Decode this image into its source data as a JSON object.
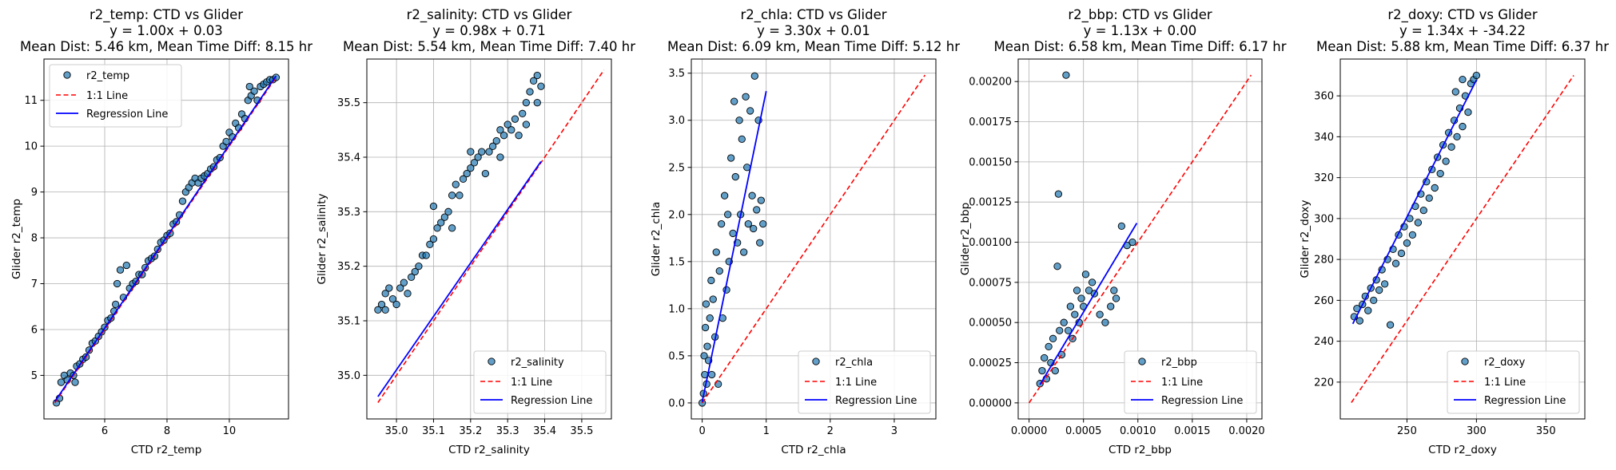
{
  "chart_data": [
    {
      "type": "scatter",
      "variable": "r2_temp",
      "title_lines": [
        "r2_temp: CTD vs Glider",
        "y = 1.00x + 0.03",
        "Mean Dist: 5.46 km, Mean Time Diff: 8.15 hr"
      ],
      "xlabel": "CTD r2_temp",
      "ylabel": "Glider r2_temp",
      "xlim": [
        4.05,
        11.9
      ],
      "ylim": [
        4.05,
        11.9
      ],
      "xticks": [
        6,
        8,
        10
      ],
      "yticks": [
        5,
        6,
        7,
        8,
        9,
        10,
        11
      ],
      "tick_decimals": 0,
      "legend_position": "upper-left",
      "legend_entries": [
        "r2_temp",
        "1:1 Line",
        "Regression Line"
      ],
      "identity_line": [
        4.4,
        11.5
      ],
      "regression": {
        "slope": 1.0,
        "intercept": 0.03,
        "x_range": [
          4.4,
          11.5
        ]
      },
      "colors": {
        "points": "#1f77b4",
        "identity": "#ff0000",
        "regression": "#0000ff"
      },
      "points": [
        [
          4.45,
          4.4
        ],
        [
          4.55,
          4.5
        ],
        [
          4.6,
          4.85
        ],
        [
          4.7,
          5.0
        ],
        [
          4.8,
          4.9
        ],
        [
          4.9,
          5.05
        ],
        [
          5.0,
          5.0
        ],
        [
          5.05,
          4.85
        ],
        [
          5.1,
          5.2
        ],
        [
          5.2,
          5.25
        ],
        [
          5.3,
          5.35
        ],
        [
          5.4,
          5.4
        ],
        [
          5.5,
          5.55
        ],
        [
          5.6,
          5.7
        ],
        [
          5.7,
          5.75
        ],
        [
          5.8,
          5.85
        ],
        [
          5.9,
          5.95
        ],
        [
          6.0,
          6.05
        ],
        [
          6.1,
          6.2
        ],
        [
          6.2,
          6.25
        ],
        [
          6.3,
          6.4
        ],
        [
          6.35,
          6.55
        ],
        [
          6.4,
          7.0
        ],
        [
          6.5,
          7.3
        ],
        [
          6.6,
          6.7
        ],
        [
          6.7,
          7.4
        ],
        [
          6.8,
          6.9
        ],
        [
          6.9,
          7.0
        ],
        [
          7.0,
          7.05
        ],
        [
          7.1,
          7.2
        ],
        [
          7.2,
          7.2
        ],
        [
          7.3,
          7.35
        ],
        [
          7.4,
          7.5
        ],
        [
          7.5,
          7.55
        ],
        [
          7.6,
          7.6
        ],
        [
          7.7,
          7.75
        ],
        [
          7.8,
          7.9
        ],
        [
          7.9,
          7.95
        ],
        [
          8.0,
          8.05
        ],
        [
          8.1,
          8.1
        ],
        [
          8.2,
          8.3
        ],
        [
          8.3,
          8.35
        ],
        [
          8.4,
          8.5
        ],
        [
          8.5,
          8.8
        ],
        [
          8.6,
          9.0
        ],
        [
          8.7,
          9.1
        ],
        [
          8.8,
          9.2
        ],
        [
          8.9,
          9.3
        ],
        [
          9.0,
          9.2
        ],
        [
          9.1,
          9.3
        ],
        [
          9.2,
          9.35
        ],
        [
          9.3,
          9.4
        ],
        [
          9.4,
          9.5
        ],
        [
          9.5,
          9.55
        ],
        [
          9.6,
          9.7
        ],
        [
          9.7,
          9.75
        ],
        [
          9.8,
          10.0
        ],
        [
          9.9,
          10.1
        ],
        [
          10.0,
          10.3
        ],
        [
          10.1,
          10.2
        ],
        [
          10.2,
          10.5
        ],
        [
          10.3,
          10.4
        ],
        [
          10.4,
          10.7
        ],
        [
          10.5,
          10.6
        ],
        [
          10.6,
          11.0
        ],
        [
          10.65,
          11.3
        ],
        [
          10.7,
          11.1
        ],
        [
          10.8,
          11.2
        ],
        [
          10.9,
          11.0
        ],
        [
          11.0,
          11.3
        ],
        [
          11.1,
          11.35
        ],
        [
          11.2,
          11.4
        ],
        [
          11.3,
          11.45
        ],
        [
          11.4,
          11.45
        ],
        [
          11.5,
          11.5
        ]
      ]
    },
    {
      "type": "scatter",
      "variable": "r2_salinity",
      "title_lines": [
        "r2_salinity: CTD vs Glider",
        "y = 0.98x + 0.71",
        "Mean Dist: 5.54 km, Mean Time Diff: 7.40 hr"
      ],
      "xlabel": "CTD r2_salinity",
      "ylabel": "Glider r2_salinity",
      "xlim": [
        34.92,
        35.58
      ],
      "ylim": [
        34.92,
        35.58
      ],
      "xticks": [
        35.0,
        35.1,
        35.2,
        35.3,
        35.4,
        35.5
      ],
      "yticks": [
        35.0,
        35.1,
        35.2,
        35.3,
        35.4,
        35.5
      ],
      "tick_decimals": 1,
      "legend_position": "lower-right",
      "legend_entries": [
        "r2_salinity",
        "1:1 Line",
        "Regression Line"
      ],
      "identity_line": [
        34.95,
        35.56
      ],
      "regression": {
        "slope": 0.98,
        "intercept": 0.71,
        "x_range": [
          34.95,
          35.39
        ]
      },
      "colors": {
        "points": "#1f77b4",
        "identity": "#ff0000",
        "regression": "#0000ff"
      },
      "points": [
        [
          34.95,
          35.12
        ],
        [
          34.96,
          35.13
        ],
        [
          34.97,
          35.15
        ],
        [
          34.97,
          35.12
        ],
        [
          34.98,
          35.16
        ],
        [
          34.99,
          35.14
        ],
        [
          35.0,
          35.13
        ],
        [
          35.01,
          35.16
        ],
        [
          35.02,
          35.17
        ],
        [
          35.03,
          35.15
        ],
        [
          35.04,
          35.18
        ],
        [
          35.05,
          35.19
        ],
        [
          35.06,
          35.2
        ],
        [
          35.07,
          35.22
        ],
        [
          35.08,
          35.22
        ],
        [
          35.09,
          35.24
        ],
        [
          35.1,
          35.25
        ],
        [
          35.1,
          35.31
        ],
        [
          35.11,
          35.27
        ],
        [
          35.12,
          35.28
        ],
        [
          35.13,
          35.29
        ],
        [
          35.14,
          35.3
        ],
        [
          35.15,
          35.33
        ],
        [
          35.15,
          35.27
        ],
        [
          35.16,
          35.35
        ],
        [
          35.17,
          35.33
        ],
        [
          35.18,
          35.36
        ],
        [
          35.19,
          35.37
        ],
        [
          35.2,
          35.38
        ],
        [
          35.2,
          35.41
        ],
        [
          35.21,
          35.39
        ],
        [
          35.22,
          35.4
        ],
        [
          35.23,
          35.41
        ],
        [
          35.24,
          35.37
        ],
        [
          35.25,
          35.41
        ],
        [
          35.26,
          35.42
        ],
        [
          35.27,
          35.43
        ],
        [
          35.28,
          35.45
        ],
        [
          35.28,
          35.4
        ],
        [
          35.29,
          35.44
        ],
        [
          35.3,
          35.46
        ],
        [
          35.31,
          35.45
        ],
        [
          35.32,
          35.47
        ],
        [
          35.33,
          35.44
        ],
        [
          35.34,
          35.48
        ],
        [
          35.35,
          35.5
        ],
        [
          35.35,
          35.46
        ],
        [
          35.36,
          35.52
        ],
        [
          35.37,
          35.54
        ],
        [
          35.38,
          35.55
        ],
        [
          35.38,
          35.5
        ],
        [
          35.39,
          35.53
        ]
      ]
    },
    {
      "type": "scatter",
      "variable": "r2_chla",
      "title_lines": [
        "r2_chla: CTD vs Glider",
        "y = 3.30x + 0.01",
        "Mean Dist: 6.09 km, Mean Time Diff: 5.12 hr"
      ],
      "xlabel": "CTD r2_chla",
      "ylabel": "Glider r2_chla",
      "xlim": [
        -0.17,
        3.65
      ],
      "ylim": [
        -0.17,
        3.65
      ],
      "xticks": [
        0,
        1,
        2,
        3
      ],
      "yticks": [
        0.0,
        0.5,
        1.0,
        1.5,
        2.0,
        2.5,
        3.0,
        3.5
      ],
      "tick_decimals_x": 0,
      "tick_decimals": 1,
      "legend_position": "lower-right",
      "legend_entries": [
        "r2_chla",
        "1:1 Line",
        "Regression Line"
      ],
      "identity_line": [
        0.0,
        3.48
      ],
      "regression": {
        "slope": 3.3,
        "intercept": 0.01,
        "x_range": [
          0.0,
          1.0
        ]
      },
      "colors": {
        "points": "#1f77b4",
        "identity": "#ff0000",
        "regression": "#0000ff"
      },
      "points": [
        [
          0.0,
          0.0
        ],
        [
          0.02,
          0.1
        ],
        [
          0.03,
          0.5
        ],
        [
          0.04,
          0.3
        ],
        [
          0.05,
          0.8
        ],
        [
          0.06,
          1.05
        ],
        [
          0.07,
          0.2
        ],
        [
          0.08,
          0.6
        ],
        [
          0.1,
          0.45
        ],
        [
          0.12,
          0.9
        ],
        [
          0.14,
          1.3
        ],
        [
          0.15,
          0.3
        ],
        [
          0.17,
          1.1
        ],
        [
          0.2,
          0.7
        ],
        [
          0.22,
          1.6
        ],
        [
          0.25,
          0.2
        ],
        [
          0.27,
          1.4
        ],
        [
          0.3,
          1.9
        ],
        [
          0.32,
          0.9
        ],
        [
          0.35,
          2.2
        ],
        [
          0.38,
          1.2
        ],
        [
          0.4,
          2.0
        ],
        [
          0.42,
          1.5
        ],
        [
          0.45,
          2.6
        ],
        [
          0.48,
          1.8
        ],
        [
          0.5,
          3.2
        ],
        [
          0.52,
          2.4
        ],
        [
          0.55,
          1.7
        ],
        [
          0.58,
          3.0
        ],
        [
          0.6,
          2.0
        ],
        [
          0.62,
          2.8
        ],
        [
          0.65,
          1.6
        ],
        [
          0.68,
          3.25
        ],
        [
          0.7,
          2.5
        ],
        [
          0.72,
          1.9
        ],
        [
          0.75,
          3.1
        ],
        [
          0.78,
          2.2
        ],
        [
          0.8,
          1.85
        ],
        [
          0.82,
          3.47
        ],
        [
          0.85,
          2.05
        ],
        [
          0.88,
          3.0
        ],
        [
          0.9,
          1.7
        ],
        [
          0.92,
          2.15
        ],
        [
          0.95,
          1.9
        ]
      ]
    },
    {
      "type": "scatter",
      "variable": "r2_bbp",
      "title_lines": [
        "r2_bbp: CTD vs Glider",
        "y = 1.13x + 0.00",
        "Mean Dist: 6.58 km, Mean Time Diff: 6.17 hr"
      ],
      "xlabel": "CTD r2_bbp",
      "ylabel": "Glider r2_bbp",
      "xlim": [
        -0.0001,
        0.00214
      ],
      "ylim": [
        -0.0001,
        0.00214
      ],
      "xticks": [
        0.0,
        0.0005,
        0.001,
        0.0015,
        0.002
      ],
      "yticks": [
        0.0,
        0.00025,
        0.0005,
        0.00075,
        0.001,
        0.00125,
        0.0015,
        0.00175,
        0.002
      ],
      "tick_decimals_x": 4,
      "tick_decimals": 5,
      "legend_position": "lower-right",
      "legend_entries": [
        "r2_bbp",
        "1:1 Line",
        "Regression Line"
      ],
      "identity_line": [
        0.0,
        0.00204
      ],
      "regression": {
        "slope": 1.13,
        "intercept": 0.0,
        "x_range": [
          0.0001,
          0.00099
        ]
      },
      "colors": {
        "points": "#1f77b4",
        "identity": "#ff0000",
        "regression": "#0000ff"
      },
      "points": [
        [
          0.0001,
          0.00012
        ],
        [
          0.00012,
          0.0002
        ],
        [
          0.00014,
          0.00028
        ],
        [
          0.00016,
          0.00015
        ],
        [
          0.00018,
          0.00035
        ],
        [
          0.0002,
          0.00025
        ],
        [
          0.00022,
          0.0004
        ],
        [
          0.00024,
          0.0002
        ],
        [
          0.00026,
          0.00085
        ],
        [
          0.00027,
          0.0013
        ],
        [
          0.00028,
          0.00045
        ],
        [
          0.0003,
          0.0003
        ],
        [
          0.00032,
          0.0005
        ],
        [
          0.00034,
          0.00204
        ],
        [
          0.00036,
          0.00045
        ],
        [
          0.00038,
          0.0006
        ],
        [
          0.0004,
          0.0004
        ],
        [
          0.00042,
          0.00055
        ],
        [
          0.00044,
          0.0007
        ],
        [
          0.00046,
          0.0005
        ],
        [
          0.00048,
          0.00065
        ],
        [
          0.0005,
          0.0006
        ],
        [
          0.00052,
          0.0008
        ],
        [
          0.00055,
          0.0007
        ],
        [
          0.00058,
          0.00075
        ],
        [
          0.0006,
          0.00068
        ],
        [
          0.00065,
          0.00055
        ],
        [
          0.0007,
          0.0005
        ],
        [
          0.00075,
          0.0006
        ],
        [
          0.00078,
          0.0007
        ],
        [
          0.0008,
          0.00065
        ],
        [
          0.00085,
          0.0011
        ],
        [
          0.0009,
          0.00098
        ],
        [
          0.00095,
          0.001
        ]
      ]
    },
    {
      "type": "scatter",
      "variable": "r2_doxy",
      "title_lines": [
        "r2_doxy: CTD vs Glider",
        "y = 1.34x + -34.22",
        "Mean Dist: 5.88 km, Mean Time Diff: 6.37 hr"
      ],
      "xlabel": "CTD r2_doxy",
      "ylabel": "Glider r2_doxy",
      "xlim": [
        202,
        378
      ],
      "ylim": [
        202,
        378
      ],
      "xticks": [
        250,
        300,
        350
      ],
      "yticks": [
        220,
        240,
        260,
        280,
        300,
        320,
        340,
        360
      ],
      "tick_decimals": 0,
      "legend_position": "lower-right",
      "legend_entries": [
        "r2_doxy",
        "1:1 Line",
        "Regression Line"
      ],
      "identity_line": [
        210,
        370
      ],
      "regression": {
        "slope": 1.34,
        "intercept": -34.22,
        "x_range": [
          211,
          300
        ]
      },
      "colors": {
        "points": "#1f77b4",
        "identity": "#ff0000",
        "regression": "#0000ff"
      },
      "points": [
        [
          212,
          252
        ],
        [
          214,
          256
        ],
        [
          216,
          250
        ],
        [
          218,
          258
        ],
        [
          220,
          262
        ],
        [
          222,
          255
        ],
        [
          224,
          266
        ],
        [
          226,
          260
        ],
        [
          228,
          270
        ],
        [
          230,
          265
        ],
        [
          232,
          275
        ],
        [
          234,
          268
        ],
        [
          236,
          280
        ],
        [
          238,
          248
        ],
        [
          240,
          285
        ],
        [
          242,
          278
        ],
        [
          244,
          292
        ],
        [
          246,
          283
        ],
        [
          248,
          296
        ],
        [
          250,
          288
        ],
        [
          252,
          300
        ],
        [
          254,
          292
        ],
        [
          256,
          306
        ],
        [
          258,
          298
        ],
        [
          260,
          312
        ],
        [
          262,
          304
        ],
        [
          264,
          318
        ],
        [
          266,
          310
        ],
        [
          268,
          324
        ],
        [
          270,
          315
        ],
        [
          272,
          330
        ],
        [
          274,
          322
        ],
        [
          276,
          336
        ],
        [
          278,
          328
        ],
        [
          280,
          342
        ],
        [
          282,
          335
        ],
        [
          284,
          348
        ],
        [
          286,
          340
        ],
        [
          288,
          354
        ],
        [
          290,
          345
        ],
        [
          292,
          360
        ],
        [
          294,
          352
        ],
        [
          296,
          366
        ],
        [
          298,
          368
        ],
        [
          300,
          370
        ],
        [
          285,
          362
        ],
        [
          290,
          368
        ]
      ]
    }
  ]
}
